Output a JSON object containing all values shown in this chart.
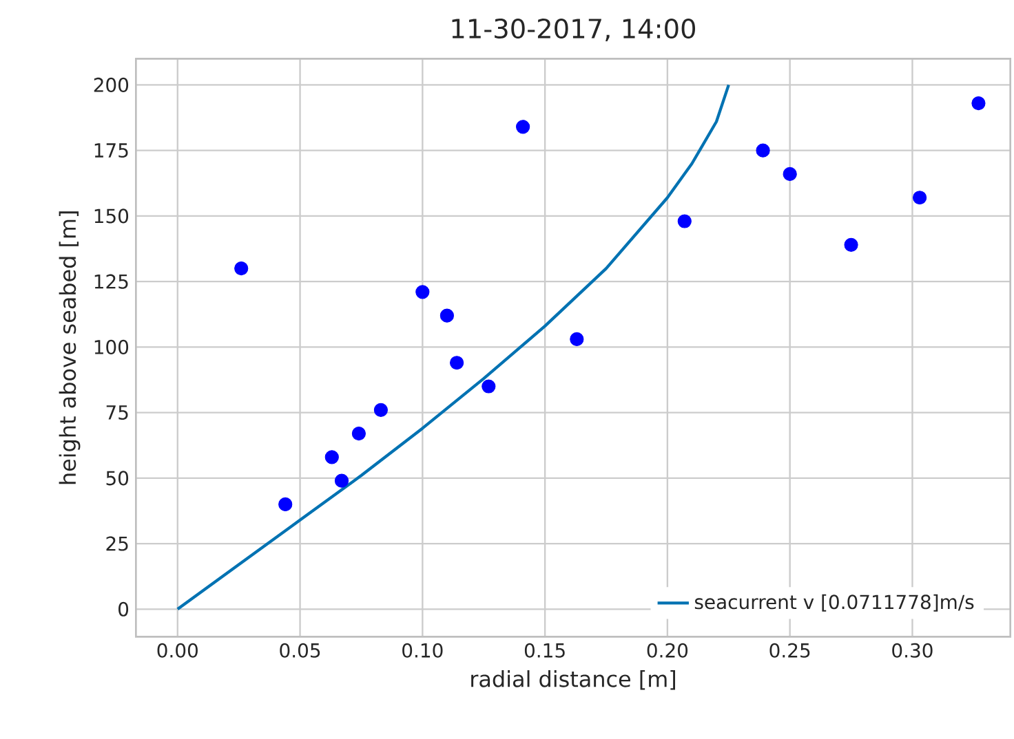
{
  "chart_data": {
    "type": "scatter",
    "title": "11-30-2017, 14:00",
    "xlabel": "radial distance [m]",
    "ylabel": "height above seabed [m]",
    "xlim": [
      -0.017,
      0.34
    ],
    "ylim": [
      -10.5,
      210
    ],
    "xticks": [
      {
        "value": 0,
        "label": "0.00"
      },
      {
        "value": 0.05,
        "label": "0.05"
      },
      {
        "value": 0.1,
        "label": "0.10"
      },
      {
        "value": 0.15,
        "label": "0.15"
      },
      {
        "value": 0.2,
        "label": "0.20"
      },
      {
        "value": 0.25,
        "label": "0.25"
      },
      {
        "value": 0.3,
        "label": "0.30"
      }
    ],
    "yticks": [
      0,
      25,
      50,
      75,
      100,
      125,
      150,
      175,
      200
    ],
    "grid": true,
    "legend": "bottom right",
    "series": [
      {
        "marker": "circle",
        "color": "#0000ff",
        "x": [
          0.026,
          0.044,
          0.063,
          0.067,
          0.074,
          0.083,
          0.1,
          0.11,
          0.114,
          0.127,
          0.141,
          0.163,
          0.207,
          0.239,
          0.25,
          0.275,
          0.303,
          0.327
        ],
        "values": [
          130,
          40,
          58,
          49,
          67,
          76,
          121,
          112,
          94,
          85,
          184,
          103,
          148,
          175,
          166,
          139,
          157,
          193
        ]
      },
      {
        "type": "line",
        "marker": "none",
        "name": "seacurrent v [0.0711778]m/s",
        "color": "#0072b2",
        "x": [
          0,
          0.025,
          0.05,
          0.075,
          0.1,
          0.125,
          0.15,
          0.175,
          0.2,
          0.21,
          0.22,
          0.225
        ],
        "values": [
          0,
          17,
          34,
          51,
          69,
          88,
          108,
          130,
          157,
          170,
          186,
          200
        ]
      }
    ]
  }
}
